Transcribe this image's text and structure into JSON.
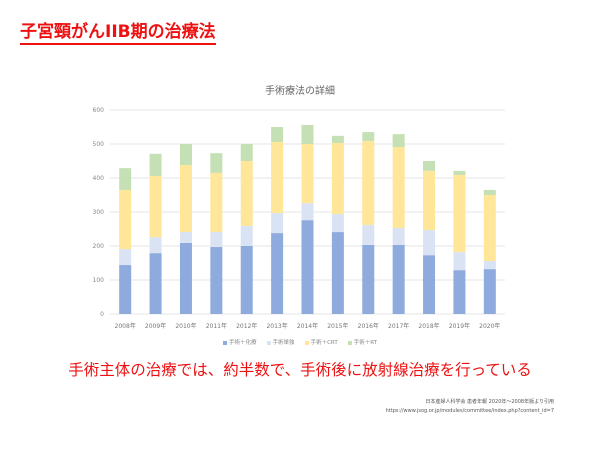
{
  "slide_title": "子宮頸がんIIB期の治療法",
  "message": "手術主体の治療では、約半数で、手術後に放射線治療を行っている",
  "source": {
    "citation": "日本産婦人科学会 患者年報 2020年～2008年版より引用",
    "url": "https://www.jsog.or.jp/modules/committee/index.php?content_id=7"
  },
  "chart_data": {
    "type": "bar",
    "stacked": true,
    "title": "手術療法の詳細",
    "xlabel": "",
    "ylabel": "",
    "ylim": [
      0,
      600
    ],
    "yticks": [
      "0",
      "100",
      "200",
      "300",
      "400",
      "500",
      "600"
    ],
    "grid": true,
    "legend_position": "bottom",
    "categories": [
      "2008年",
      "2009年",
      "2010年",
      "2011年",
      "2012年",
      "2013年",
      "2014年",
      "2015年",
      "2016年",
      "2017年",
      "2018年",
      "2019年",
      "2020年"
    ],
    "series": [
      {
        "name": "手術＋化療",
        "color": "#8faadc",
        "values": [
          144,
          179,
          209,
          197,
          200,
          238,
          276,
          241,
          203,
          203,
          173,
          129,
          132
        ]
      },
      {
        "name": "手術単独",
        "color": "#dae3f3",
        "values": [
          47,
          47,
          32,
          44,
          59,
          59,
          50,
          53,
          59,
          50,
          74,
          53,
          24
        ]
      },
      {
        "name": "手術＋CRT",
        "color": "#ffe699",
        "values": [
          174,
          180,
          197,
          174,
          191,
          209,
          174,
          209,
          247,
          238,
          174,
          227,
          194
        ]
      },
      {
        "name": "手術＋RT",
        "color": "#c5e0b4",
        "values": [
          64,
          65,
          62,
          58,
          50,
          44,
          56,
          21,
          26,
          38,
          29,
          12,
          15
        ]
      }
    ]
  }
}
